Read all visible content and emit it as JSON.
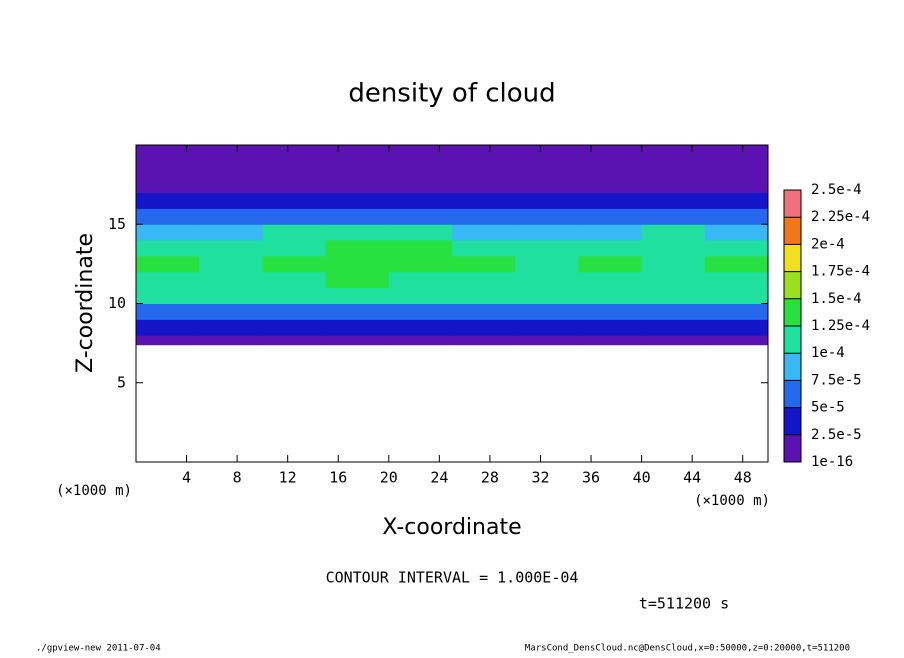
{
  "chart_data": {
    "type": "heatmap",
    "title": "density of cloud",
    "x_label": "X-coordinate",
    "y_label": "Z-coordinate",
    "x_unit": "(×1000 m)",
    "y_unit": "(×1000 m)",
    "xlim": [
      0,
      50
    ],
    "xticks": [
      4,
      8,
      12,
      16,
      20,
      24,
      28,
      32,
      36,
      40,
      44,
      48
    ],
    "ylim": [
      0,
      20
    ],
    "yticks": [
      5,
      10,
      15
    ],
    "x_edges": [
      0,
      5,
      10,
      15,
      20,
      25,
      30,
      35,
      40,
      45,
      50
    ],
    "z_edges": [
      7.4,
      8,
      9,
      10,
      11,
      12,
      13,
      14,
      15,
      16,
      17,
      18,
      19,
      20
    ],
    "values": [
      [
        1e-05,
        1e-05,
        1e-05,
        8e-06,
        1e-05,
        1e-05,
        8e-06,
        1e-05,
        1e-05,
        1e-05
      ],
      [
        3e-05,
        3e-05,
        2.8e-05,
        2.5e-05,
        3e-05,
        3e-05,
        2.7e-05,
        3e-05,
        3e-05,
        3e-05
      ],
      [
        7e-05,
        7e-05,
        6.5e-05,
        6e-05,
        7e-05,
        7e-05,
        6.5e-05,
        7e-05,
        7e-05,
        7e-05
      ],
      [
        0.000105,
        0.0001,
        0.0001,
        0.0001,
        0.000105,
        0.0001,
        0.0001,
        0.000105,
        0.0001,
        0.000105
      ],
      [
        0.00012,
        0.000115,
        0.00012,
        0.000125,
        0.00012,
        0.000115,
        0.00012,
        0.00012,
        0.000115,
        0.00012
      ],
      [
        0.000125,
        0.00012,
        0.000125,
        0.00013,
        0.00013,
        0.000125,
        0.00012,
        0.000125,
        0.00012,
        0.000125
      ],
      [
        0.00011,
        0.000115,
        0.00012,
        0.000125,
        0.000125,
        0.00012,
        0.000115,
        0.000115,
        0.00012,
        0.000115
      ],
      [
        9e-05,
        9.5e-05,
        0.0001,
        0.000105,
        0.0001,
        9.5e-05,
        9e-05,
        9e-05,
        0.0001,
        9.5e-05
      ],
      [
        6e-05,
        6e-05,
        7e-05,
        7e-05,
        6e-05,
        6e-05,
        5.5e-05,
        6e-05,
        7e-05,
        6e-05
      ],
      [
        4e-05,
        4e-05,
        4.5e-05,
        4e-05,
        3.5e-05,
        3.5e-05,
        3e-05,
        3.5e-05,
        4e-05,
        4e-05
      ],
      [
        2e-05,
        2e-05,
        2.2e-05,
        2e-05,
        1.8e-05,
        1.5e-05,
        1.5e-05,
        1.8e-05,
        2e-05,
        2e-05
      ],
      [
        1e-05,
        1.2e-05,
        1e-05,
        1e-05,
        8e-06,
        5e-06,
        5e-06,
        8e-06,
        1e-05,
        1e-05
      ],
      [
        5e-06,
        5e-06,
        5e-06,
        5e-06,
        5e-06,
        3e-06,
        3e-06,
        5e-06,
        5e-06,
        5e-06
      ]
    ],
    "levels": [
      {
        "value": 1e-16,
        "label": "1e-16"
      },
      {
        "value": 2.5e-05,
        "label": "2.5e-5"
      },
      {
        "value": 5e-05,
        "label": "5e-5"
      },
      {
        "value": 7.5e-05,
        "label": "7.5e-5"
      },
      {
        "value": 0.0001,
        "label": "1e-4"
      },
      {
        "value": 0.000125,
        "label": "1.25e-4"
      },
      {
        "value": 0.00015,
        "label": "1.5e-4"
      },
      {
        "value": 0.000175,
        "label": "1.75e-4"
      },
      {
        "value": 0.0002,
        "label": "2e-4"
      },
      {
        "value": 0.000225,
        "label": "2.25e-4"
      },
      {
        "value": 0.00025,
        "label": "2.5e-4"
      }
    ],
    "colors": [
      "#5a12b0",
      "#1414c8",
      "#2468ee",
      "#38b8f4",
      "#20e0a0",
      "#28e040",
      "#9ae020",
      "#f0e020",
      "#f07818",
      "#f07080"
    ],
    "contour_interval": "CONTOUR INTERVAL = 1.000E-04",
    "time_label": "t=511200 s",
    "footer_left": "./gpview-new  2011-07-04",
    "footer_right": "MarsCond_DensCloud.nc@DensCloud,x=0:50000,z=0:20000,t=511200"
  }
}
